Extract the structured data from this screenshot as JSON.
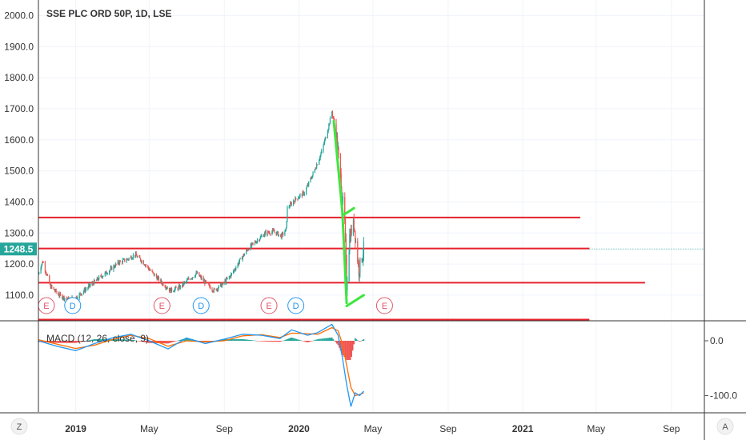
{
  "header": {
    "title": "SSE PLC ORD 50P, 1D, LSE"
  },
  "current_price": {
    "label": "1248.5",
    "color": "#26a69a"
  },
  "macd": {
    "title": "MACD (12, 26, close, 9)",
    "ticks": [
      "0.0",
      "-100.0"
    ],
    "tick_values": [
      0,
      -100
    ]
  },
  "price_axis": {
    "ticks": [
      "2000.0",
      "1900.0",
      "1800.0",
      "1700.0",
      "1600.0",
      "1500.0",
      "1400.0",
      "1300.0",
      "1200.0",
      "1100.0"
    ]
  },
  "time_axis": {
    "labels": [
      {
        "text": "2019",
        "bold": true
      },
      {
        "text": "May",
        "bold": false
      },
      {
        "text": "Sep",
        "bold": false
      },
      {
        "text": "2020",
        "bold": true
      },
      {
        "text": "May",
        "bold": false
      },
      {
        "text": "Sep",
        "bold": false
      },
      {
        "text": "2021",
        "bold": true
      },
      {
        "text": "May",
        "bold": false
      },
      {
        "text": "Sep",
        "bold": false
      }
    ]
  },
  "corner_buttons": {
    "left": "Z",
    "right": "A"
  },
  "events": [
    {
      "type": "E",
      "date": "2018-11-14",
      "color": "#e0576a"
    },
    {
      "type": "D",
      "date": "2018-12-27",
      "color": "#2196f3"
    },
    {
      "type": "E",
      "date": "2019-05-22",
      "color": "#e0576a"
    },
    {
      "type": "D",
      "date": "2019-07-25",
      "color": "#2196f3"
    },
    {
      "type": "E",
      "date": "2019-11-13",
      "color": "#e0576a"
    },
    {
      "type": "D",
      "date": "2019-12-27",
      "color": "#2196f3"
    },
    {
      "type": "E",
      "date": "2020-05-20",
      "color": "#e0576a"
    }
  ],
  "chart_data": {
    "type": "candlestick",
    "title": "SSE PLC ORD 50P, 1D, LSE",
    "interval": "1D",
    "ylim": [
      1020,
      2050
    ],
    "xlim": [
      "2018-11-01",
      "2021-10-25"
    ],
    "last_price": 1248.5,
    "price_path": [
      [
        "2018-11-01",
        1170
      ],
      [
        "2018-11-08",
        1210
      ],
      [
        "2018-11-20",
        1130
      ],
      [
        "2018-12-05",
        1100
      ],
      [
        "2018-12-20",
        1085
      ],
      [
        "2019-01-03",
        1095
      ],
      [
        "2019-01-18",
        1120
      ],
      [
        "2019-02-05",
        1150
      ],
      [
        "2019-02-25",
        1180
      ],
      [
        "2019-03-12",
        1205
      ],
      [
        "2019-03-26",
        1215
      ],
      [
        "2019-04-08",
        1230
      ],
      [
        "2019-04-22",
        1205
      ],
      [
        "2019-05-07",
        1170
      ],
      [
        "2019-05-22",
        1140
      ],
      [
        "2019-06-05",
        1115
      ],
      [
        "2019-06-20",
        1125
      ],
      [
        "2019-07-04",
        1150
      ],
      [
        "2019-07-18",
        1170
      ],
      [
        "2019-08-01",
        1140
      ],
      [
        "2019-08-15",
        1115
      ],
      [
        "2019-08-29",
        1135
      ],
      [
        "2019-09-12",
        1165
      ],
      [
        "2019-09-26",
        1210
      ],
      [
        "2019-10-10",
        1250
      ],
      [
        "2019-10-24",
        1275
      ],
      [
        "2019-11-07",
        1300
      ],
      [
        "2019-11-21",
        1305
      ],
      [
        "2019-12-03",
        1290
      ],
      [
        "2019-12-11",
        1310
      ],
      [
        "2019-12-13",
        1380
      ],
      [
        "2019-12-27",
        1410
      ],
      [
        "2020-01-10",
        1430
      ],
      [
        "2020-01-24",
        1490
      ],
      [
        "2020-02-07",
        1560
      ],
      [
        "2020-02-18",
        1640
      ],
      [
        "2020-02-24",
        1690
      ],
      [
        "2020-03-02",
        1620
      ],
      [
        "2020-03-09",
        1480
      ],
      [
        "2020-03-16",
        1330
      ],
      [
        "2020-03-19",
        1130
      ],
      [
        "2020-03-24",
        1290
      ],
      [
        "2020-03-31",
        1330
      ],
      [
        "2020-04-08",
        1180
      ],
      [
        "2020-04-16",
        1248.5
      ]
    ],
    "horizontal_levels": [
      {
        "price": 1350,
        "from": "2018-11-01",
        "to": "2021-04-05",
        "color": "#e5212b"
      },
      {
        "price": 1250,
        "from": "2018-11-01",
        "to": "2021-04-20",
        "color": "#e5212b"
      },
      {
        "price": 1140,
        "from": "2018-11-01",
        "to": "2021-07-20",
        "color": "#e5212b"
      },
      {
        "price": 1248.5,
        "from": "2021-04-20",
        "to": "2021-10-25",
        "color": "#26a69a",
        "style": "dotted"
      }
    ],
    "trendlines": [
      {
        "from": [
          "2020-02-27",
          1660
        ],
        "to": [
          "2020-03-12",
          1370
        ],
        "color": "#3ee63e"
      },
      {
        "from": [
          "2020-03-12",
          1370
        ],
        "to": [
          "2020-03-19",
          1075
        ],
        "color": "#3ee63e"
      },
      {
        "from": [
          "2020-03-15",
          1360
        ],
        "to": [
          "2020-03-31",
          1380
        ],
        "color": "#3ee63e"
      },
      {
        "from": [
          "2020-03-19",
          1065
        ],
        "to": [
          "2020-04-16",
          1100
        ],
        "color": "#3ee63e"
      }
    ],
    "macd": {
      "params": [
        12,
        26,
        "close",
        9
      ],
      "ylim": [
        -130,
        35
      ],
      "macd_path": [
        [
          "2018-11-01",
          0
        ],
        [
          "2018-12-01",
          -10
        ],
        [
          "2019-01-01",
          -18
        ],
        [
          "2019-02-01",
          -5
        ],
        [
          "2019-03-01",
          5
        ],
        [
          "2019-04-01",
          12
        ],
        [
          "2019-05-01",
          0
        ],
        [
          "2019-06-01",
          -15
        ],
        [
          "2019-07-01",
          5
        ],
        [
          "2019-08-01",
          -5
        ],
        [
          "2019-09-01",
          3
        ],
        [
          "2019-10-01",
          12
        ],
        [
          "2019-11-01",
          10
        ],
        [
          "2019-12-01",
          4
        ],
        [
          "2019-12-20",
          20
        ],
        [
          "2020-01-15",
          10
        ],
        [
          "2020-02-01",
          15
        ],
        [
          "2020-02-24",
          30
        ],
        [
          "2020-03-05",
          10
        ],
        [
          "2020-03-12",
          -30
        ],
        [
          "2020-03-19",
          -80
        ],
        [
          "2020-03-26",
          -120
        ],
        [
          "2020-04-02",
          -95
        ],
        [
          "2020-04-09",
          -100
        ],
        [
          "2020-04-16",
          -92
        ]
      ],
      "signal_path": [
        [
          "2018-11-01",
          2
        ],
        [
          "2018-12-01",
          -6
        ],
        [
          "2019-01-01",
          -14
        ],
        [
          "2019-02-01",
          -8
        ],
        [
          "2019-03-01",
          2
        ],
        [
          "2019-04-01",
          10
        ],
        [
          "2019-05-01",
          4
        ],
        [
          "2019-06-01",
          -10
        ],
        [
          "2019-07-01",
          0
        ],
        [
          "2019-08-01",
          -2
        ],
        [
          "2019-09-01",
          0
        ],
        [
          "2019-10-01",
          9
        ],
        [
          "2019-11-01",
          11
        ],
        [
          "2019-12-01",
          6
        ],
        [
          "2019-12-20",
          14
        ],
        [
          "2020-01-15",
          13
        ],
        [
          "2020-02-01",
          12
        ],
        [
          "2020-02-24",
          24
        ],
        [
          "2020-03-05",
          18
        ],
        [
          "2020-03-12",
          -5
        ],
        [
          "2020-03-19",
          -45
        ],
        [
          "2020-03-26",
          -85
        ],
        [
          "2020-04-02",
          -100
        ],
        [
          "2020-04-09",
          -98
        ],
        [
          "2020-04-16",
          -95
        ]
      ],
      "colors": {
        "macd": "#2196f3",
        "signal": "#ff6d00",
        "hist_pos": "#26a69a",
        "hist_neg": "#ef5350"
      }
    }
  }
}
